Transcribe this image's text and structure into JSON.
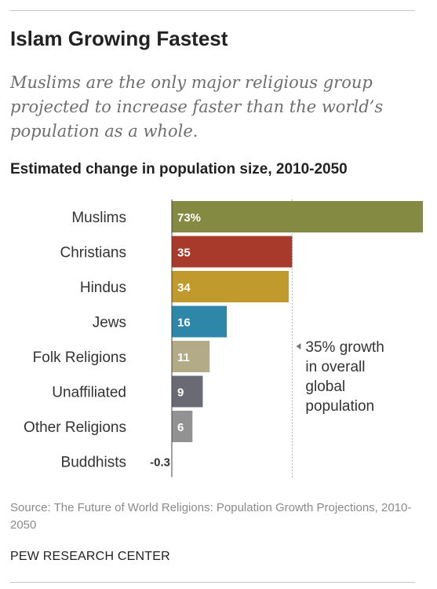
{
  "header": {
    "title": "Islam Growing Fastest",
    "subtitle": "Muslims are the only major religious group projected to increase faster than the world’s population as a whole.",
    "chart_heading": "Estimated change in population size, 2010-2050"
  },
  "chart_data": {
    "type": "bar",
    "orientation": "horizontal",
    "title": "Estimated change in population size, 2010-2050",
    "categories": [
      "Muslims",
      "Christians",
      "Hindus",
      "Jews",
      "Folk Religions",
      "Unaffiliated",
      "Other Religions",
      "Buddhists"
    ],
    "values": [
      73,
      35,
      34,
      16,
      11,
      9,
      6,
      -0.3
    ],
    "value_labels": [
      "73%",
      "35",
      "34",
      "16",
      "11",
      "9",
      "6",
      "-0.3"
    ],
    "colors": [
      "#858a43",
      "#a83a2c",
      "#c19a2d",
      "#2e87a8",
      "#b3aa88",
      "#6a6a74",
      "#929292",
      "#929292"
    ],
    "xlim": [
      -0.3,
      73
    ],
    "grid": false,
    "reference_line": {
      "value": 35,
      "style": "dotted",
      "label_lines": [
        "35% growth",
        "in overall",
        "global",
        "population"
      ]
    }
  },
  "footer": {
    "source": "Source: The Future of World Religions: Population Growth Projections, 2010-2050",
    "brand": "PEW RESEARCH CENTER"
  }
}
